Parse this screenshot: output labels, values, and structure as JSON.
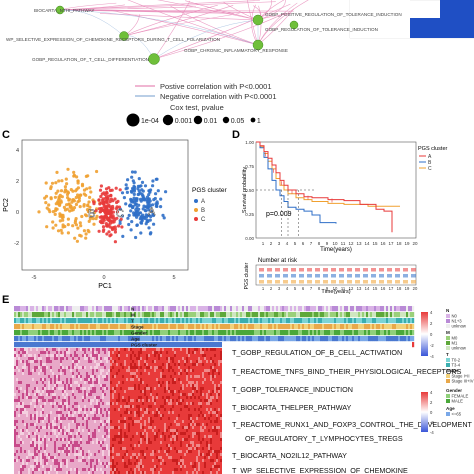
{
  "panel_a": {
    "nodes": [
      {
        "label": "BIOCARTA_NTHI_PATHWAY"
      },
      {
        "label": "GOBP_POSITIVE_REGULATION_OF_TOLERANCE_INDUCTION"
      },
      {
        "label": "WP_SELECTIVE_EXPRESSION_OF_CHEMOKINE_RECEPTORS_DURING_T_CELL_POLARIZATION"
      },
      {
        "label": "GOBP_CHRONIC_INFLAMMATORY_RESPONSE"
      },
      {
        "label": "GOBP_REGULATION_OF_T_CELL_DIFFERENTIATION"
      },
      {
        "label": "GOBP_REGULATION_OF_TOLERANCE_INDUCTION"
      }
    ],
    "legend": {
      "positive": "Postive correlation with P<0.0001",
      "negative": "Negative correlation with P<0.0001",
      "cox_title": "Cox test, pvalue",
      "cox_values": [
        "1e-04",
        "0.001",
        "0.01",
        "0.05",
        "1"
      ]
    },
    "colors": {
      "positive_edge": "#e88ab8",
      "negative_edge": "#8fb0d8",
      "node": "#6fbf3a",
      "heat_blue": "#1f4fc4"
    }
  },
  "panel_c": {
    "label": "C",
    "xlabel": "PC1",
    "ylabel": "PC2",
    "legend_title": "PGS cluster",
    "groups": [
      "A",
      "B",
      "C"
    ],
    "group_colors": [
      "#2f6fc8",
      "#f0a030",
      "#e83a3a"
    ],
    "xticks": [
      "-5",
      "0",
      "5"
    ],
    "yticks": [
      "4",
      "2",
      "0",
      "-2"
    ]
  },
  "panel_d": {
    "label": "D",
    "ylabel": "Survival probability",
    "xlabel": "Time(years)",
    "legend_title": "PGS cluster",
    "groups": [
      "A",
      "B",
      "C"
    ],
    "group_colors": [
      "#e83a3a",
      "#2f6fc8",
      "#f0a030"
    ],
    "pvalue": "p=0.009",
    "yticks": [
      "1.00",
      "0.75",
      "0.50",
      "0.25",
      "0.00"
    ],
    "xticks": [
      "0",
      "1",
      "2",
      "3",
      "4",
      "5",
      "6",
      "7",
      "8",
      "9",
      "10",
      "11",
      "12",
      "13",
      "14",
      "15",
      "16",
      "17",
      "18",
      "19",
      "20"
    ],
    "risk_title": "Number at risk",
    "risk_ylabel": "PGS cluster",
    "risk_xlabel": "Time(years)"
  },
  "panel_e": {
    "label": "E",
    "annotation_rows": [
      "N",
      "M",
      "T",
      "Stage",
      "Gender",
      "Age",
      "PGS cluster"
    ],
    "pathways": [
      "T_GOBP_REGULATION_OF_B_CELL_ACTIVATION",
      "T_REACTOME_TNFS_BIND_THEIR_PHYSIOLOGICAL_RECEPTORS",
      "T_GOBP_TOLERANCE_INDUCTION",
      "T_BIOCARTA_THELPER_PATHWAY",
      "T_REACTOME_RUNX1_AND_FOXP3_CONTROL_THE_DEVELOPMENT",
      "OF_REGULATORY_T_LYMPHOCYTES_TREGS",
      "T_BIOCARTA_NO2IL12_PATHWAY",
      "T_WP_SELECTIVE_EXPRESSION_OF_CHEMOKINE"
    ],
    "legend": {
      "n_title": "N",
      "n_items": [
        "N0",
        "N1+3",
        "unknow"
      ],
      "m_title": "M",
      "m_items": [
        "M0",
        "M1",
        "unknow"
      ],
      "t_title": "T",
      "t_items": [
        "T0-2",
        "T3-4"
      ],
      "stage_title": "Stage",
      "stage_items": [
        "Stage I+II",
        "Stage III+IV"
      ],
      "gender_title": "Gender",
      "gender_items": [
        "FEMALE",
        "MALE"
      ],
      "age_title": "Age",
      "age_items": [
        "<=65"
      ],
      "scale_ticks": [
        "4",
        "2",
        "0",
        "-2",
        "-4"
      ]
    }
  }
}
